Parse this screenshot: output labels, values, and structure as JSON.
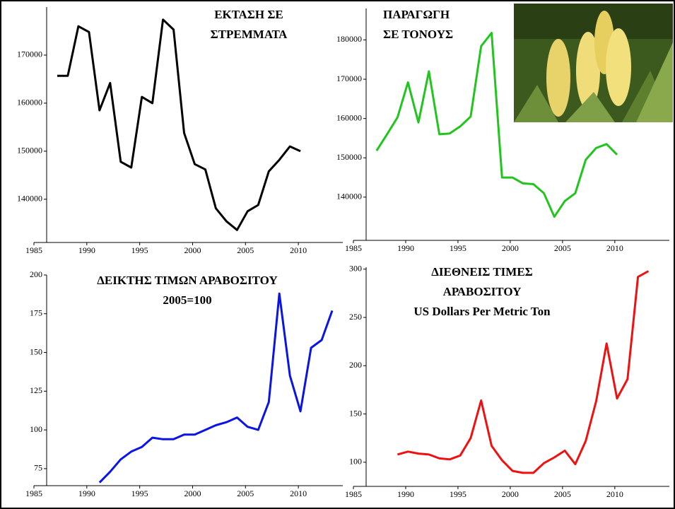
{
  "chart_data": [
    {
      "type": "line",
      "title": [
        "ΕΚΤΑΣΗ ΣΕ",
        "ΣΤΡΕΜΜΑΤΑ"
      ],
      "color": "#000000",
      "x": [
        1986,
        1987,
        1988,
        1989,
        1990,
        1991,
        1992,
        1993,
        1994,
        1995,
        1996,
        1997,
        1998,
        1999,
        2000,
        2001,
        2002,
        2003,
        2004,
        2005,
        2006,
        2007,
        2008,
        2009
      ],
      "values": [
        165700,
        165700,
        176000,
        174800,
        158500,
        164200,
        147800,
        146600,
        161300,
        160000,
        177400,
        175300,
        153800,
        147300,
        146200,
        138100,
        135400,
        133600,
        137500,
        138800,
        145800,
        148200,
        151000,
        150000
      ],
      "xlim": [
        1985,
        2013
      ],
      "xticks": [
        1985,
        1990,
        1995,
        2000,
        2005,
        2010
      ],
      "ylim": [
        131000,
        180000
      ],
      "yticks": [
        140000,
        150000,
        160000,
        170000
      ]
    },
    {
      "type": "line",
      "title": [
        "ΠΑΡΑΓΩΓΗ",
        "ΣΕ ΤΟΝΟΥΣ"
      ],
      "color": "#22c41e",
      "x": [
        1986,
        1987,
        1988,
        1989,
        1990,
        1991,
        1992,
        1993,
        1994,
        1995,
        1996,
        1997,
        1998,
        1999,
        2000,
        2001,
        2002,
        2003,
        2004,
        2005,
        2006,
        2007,
        2008,
        2009
      ],
      "values": [
        151800,
        156000,
        160300,
        169200,
        159000,
        172000,
        156000,
        156200,
        158000,
        160500,
        178400,
        181800,
        145000,
        145000,
        143500,
        143300,
        141000,
        135000,
        139000,
        141000,
        149500,
        152500,
        153500,
        150800
      ],
      "xlim": [
        1985,
        2014
      ],
      "xticks": [
        1985,
        1990,
        1995,
        2000,
        2005,
        2010
      ],
      "ylim": [
        129000,
        188000
      ],
      "yticks": [
        140000,
        150000,
        160000,
        170000,
        180000
      ]
    },
    {
      "type": "line",
      "title": [
        "ΔΕΙΚΤΗΣ  ΤΙΜΩΝ ΑΡΑΒΟΣΙΤΟΥ",
        "2005=100"
      ],
      "color": "#0a14e6",
      "x": [
        1990,
        1991,
        1992,
        1993,
        1994,
        1995,
        1996,
        1997,
        1998,
        1999,
        2000,
        2001,
        2002,
        2003,
        2004,
        2005,
        2006,
        2007,
        2008,
        2009,
        2010,
        2011,
        2012
      ],
      "values": [
        66,
        73,
        81,
        86,
        89,
        95,
        94,
        94,
        97,
        97,
        100,
        103,
        105,
        108,
        102,
        100,
        118,
        188,
        135,
        112,
        153,
        158,
        177
      ],
      "xlim": [
        1985,
        2013
      ],
      "xticks": [
        1985,
        1990,
        1995,
        2000,
        2005,
        2010
      ],
      "ylim": [
        64,
        200
      ],
      "yticks": [
        75,
        100,
        125,
        150,
        175,
        200
      ]
    },
    {
      "type": "line",
      "title": [
        "ΔΙΕΘΝΕΙΣ  ΤΙΜΕΣ",
        "ΑΡΑΒΟΣΙΤΟΥ",
        "US Dollars Per Metric Ton"
      ],
      "color": "#ee1111",
      "x": [
        1988,
        1989,
        1990,
        1991,
        1992,
        1993,
        1994,
        1995,
        1996,
        1997,
        1998,
        1999,
        2000,
        2001,
        2002,
        2003,
        2004,
        2005,
        2006,
        2007,
        2008,
        2009,
        2010,
        2011,
        2012
      ],
      "values": [
        108,
        111,
        109,
        108,
        104,
        103,
        107,
        125,
        164,
        117,
        102,
        91,
        89,
        89,
        99,
        105,
        112,
        98,
        122,
        163,
        223,
        166,
        186,
        292,
        298
      ],
      "xlim": [
        1985,
        2014
      ],
      "xticks": [
        1985,
        1990,
        1995,
        2000,
        2005,
        2010
      ],
      "ylim": [
        75,
        302
      ],
      "yticks": [
        100,
        150,
        200,
        250,
        300
      ]
    }
  ]
}
